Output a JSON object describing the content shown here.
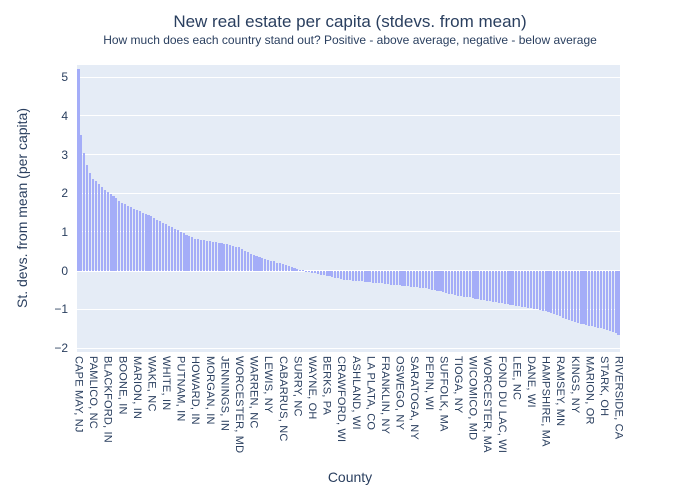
{
  "chart_data": {
    "type": "bar",
    "title": "New real estate per capita (stdevs. from mean)",
    "subtitle": "How much does each country stand out? Positive - above average, negative - below average",
    "xlabel": "County",
    "ylabel": "St. devs. from mean (per capita)",
    "ylim": [
      -2.1,
      5.31
    ],
    "y_ticks": [
      -2,
      -1,
      0,
      1,
      2,
      3,
      4,
      5
    ],
    "grid": true,
    "legend": false,
    "n_bars": 186,
    "x_tick_interval": 5,
    "x_tick_labels": [
      "CAPE MAY, NJ",
      "PAMLICO, NC",
      "BLACKFORD, IN",
      "BOONE, IN",
      "MARION, IN",
      "WAKE, NC",
      "WHITE, IN",
      "PUTNAM, IN",
      "HOWARD, IN",
      "MORGAN, IN",
      "JENNINGS, IN",
      "WORCESTER, MD",
      "WARREN, NC",
      "LEWIS, NY",
      "CABARRUS, NC",
      "SURRY, NC",
      "WAYNE, OH",
      "BERKS, PA",
      "CRAWFORD, WI",
      "ASHLAND, WI",
      "LA PLATA, CO",
      "FRANKLIN, NY",
      "OSWEGO, NY",
      "SARATOGA, NY",
      "PEPIN, WI",
      "SUFFOLK, MA",
      "TIOGA, NY",
      "WICOMICO, MD",
      "WORCESTER, MA",
      "FOND DU LAC, WI",
      "LEE, NC",
      "DANE, WI",
      "HAMPSHIRE, MA",
      "RAMSEY, MN",
      "KINGS, NY",
      "MARION, OR",
      "STARK, OH",
      "RIVERSIDE, CA"
    ],
    "labeled_values": [
      {
        "label": "CAPE MAY, NJ",
        "value": 5.2
      },
      {
        "label": "PAMLICO, NC",
        "value": 2.38
      },
      {
        "label": "BLACKFORD, IN",
        "value": 2.02
      },
      {
        "label": "BOONE, IN",
        "value": 1.76
      },
      {
        "label": "MARION, IN",
        "value": 1.56
      },
      {
        "label": "WAKE, NC",
        "value": 1.4
      },
      {
        "label": "WHITE, IN",
        "value": 1.2
      },
      {
        "label": "PUTNAM, IN",
        "value": 1.0
      },
      {
        "label": "HOWARD, IN",
        "value": 0.83
      },
      {
        "label": "MORGAN, IN",
        "value": 0.76
      },
      {
        "label": "JENNINGS, IN",
        "value": 0.7
      },
      {
        "label": "WORCESTER, MD",
        "value": 0.6
      },
      {
        "label": "WARREN, NC",
        "value": 0.4
      },
      {
        "label": "LEWIS, NY",
        "value": 0.28
      },
      {
        "label": "CABARRUS, NC",
        "value": 0.17
      },
      {
        "label": "SURRY, NC",
        "value": 0.05
      },
      {
        "label": "WAYNE, OH",
        "value": -0.05
      },
      {
        "label": "BERKS, PA",
        "value": -0.13
      },
      {
        "label": "CRAWFORD, WI",
        "value": -0.22
      },
      {
        "label": "ASHLAND, WI",
        "value": -0.27
      },
      {
        "label": "LA PLATA, CO",
        "value": -0.3
      },
      {
        "label": "FRANKLIN, NY",
        "value": -0.34
      },
      {
        "label": "OSWEGO, NY",
        "value": -0.38
      },
      {
        "label": "SARATOGA, NY",
        "value": -0.42
      },
      {
        "label": "PEPIN, WI",
        "value": -0.47
      },
      {
        "label": "SUFFOLK, MA",
        "value": -0.55
      },
      {
        "label": "TIOGA, NY",
        "value": -0.65
      },
      {
        "label": "WICOMICO, MD",
        "value": -0.7
      },
      {
        "label": "WORCESTER, MA",
        "value": -0.78
      },
      {
        "label": "FOND DU LAC, WI",
        "value": -0.84
      },
      {
        "label": "LEE, NC",
        "value": -0.9
      },
      {
        "label": "DANE, WI",
        "value": -0.97
      },
      {
        "label": "HAMPSHIRE, MA",
        "value": -1.05
      },
      {
        "label": "RAMSEY, MN",
        "value": -1.18
      },
      {
        "label": "KINGS, NY",
        "value": -1.33
      },
      {
        "label": "MARION, OR",
        "value": -1.43
      },
      {
        "label": "STARK, OH",
        "value": -1.5
      },
      {
        "label": "RIVERSIDE, CA",
        "value": -1.65
      }
    ],
    "values": [
      5.2,
      3.5,
      3.05,
      2.72,
      2.52,
      2.38,
      2.31,
      2.24,
      2.16,
      2.09,
      2.02,
      1.97,
      1.92,
      1.87,
      1.81,
      1.76,
      1.72,
      1.68,
      1.64,
      1.6,
      1.56,
      1.53,
      1.5,
      1.46,
      1.43,
      1.4,
      1.36,
      1.32,
      1.28,
      1.24,
      1.2,
      1.16,
      1.12,
      1.08,
      1.04,
      1.0,
      0.97,
      0.93,
      0.9,
      0.86,
      0.83,
      0.82,
      0.8,
      0.79,
      0.77,
      0.76,
      0.75,
      0.74,
      0.72,
      0.71,
      0.7,
      0.68,
      0.66,
      0.64,
      0.62,
      0.6,
      0.56,
      0.52,
      0.48,
      0.44,
      0.4,
      0.38,
      0.35,
      0.33,
      0.3,
      0.28,
      0.26,
      0.24,
      0.21,
      0.19,
      0.17,
      0.15,
      0.12,
      0.1,
      0.07,
      0.05,
      0.03,
      0.01,
      -0.01,
      -0.03,
      -0.05,
      -0.07,
      -0.08,
      -0.1,
      -0.11,
      -0.13,
      -0.15,
      -0.17,
      -0.18,
      -0.2,
      -0.22,
      -0.23,
      -0.24,
      -0.25,
      -0.26,
      -0.27,
      -0.28,
      -0.28,
      -0.29,
      -0.29,
      -0.3,
      -0.31,
      -0.32,
      -0.32,
      -0.33,
      -0.34,
      -0.35,
      -0.36,
      -0.36,
      -0.37,
      -0.38,
      -0.39,
      -0.4,
      -0.4,
      -0.41,
      -0.42,
      -0.43,
      -0.44,
      -0.45,
      -0.46,
      -0.47,
      -0.49,
      -0.5,
      -0.52,
      -0.53,
      -0.55,
      -0.57,
      -0.59,
      -0.61,
      -0.63,
      -0.65,
      -0.66,
      -0.67,
      -0.68,
      -0.69,
      -0.7,
      -0.72,
      -0.73,
      -0.75,
      -0.76,
      -0.78,
      -0.79,
      -0.8,
      -0.82,
      -0.83,
      -0.84,
      -0.85,
      -0.86,
      -0.88,
      -0.89,
      -0.9,
      -0.91,
      -0.93,
      -0.94,
      -0.96,
      -0.97,
      -0.99,
      -1.0,
      -1.02,
      -1.03,
      -1.05,
      -1.08,
      -1.1,
      -1.13,
      -1.15,
      -1.18,
      -1.21,
      -1.24,
      -1.27,
      -1.3,
      -1.33,
      -1.35,
      -1.37,
      -1.39,
      -1.41,
      -1.43,
      -1.44,
      -1.46,
      -1.47,
      -1.49,
      -1.5,
      -1.53,
      -1.56,
      -1.59,
      -1.62,
      -1.65
    ],
    "colors": {
      "paper_bg": "#ffffff",
      "plot_bg": "#e5ecf6",
      "bar": "#a4adf8",
      "grid": "#ffffff",
      "text": "#2a3f5f"
    }
  }
}
